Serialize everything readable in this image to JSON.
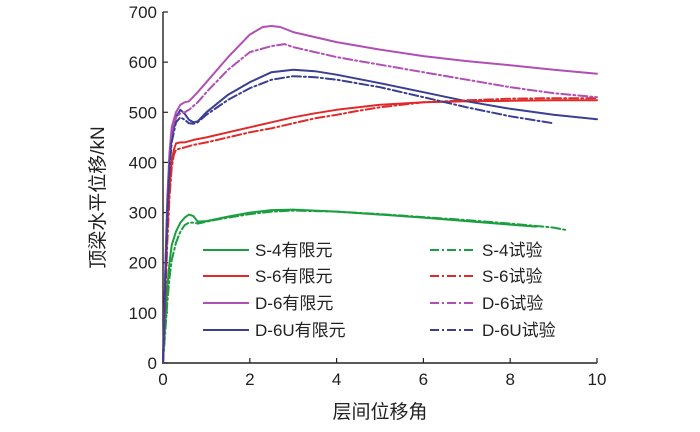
{
  "chart_data": {
    "type": "line",
    "xlabel": "层间位移角",
    "ylabel": "顶梁水平位移/kN",
    "xlim": [
      0,
      10
    ],
    "ylim": [
      0,
      700
    ],
    "xticks": [
      0,
      2,
      4,
      6,
      8,
      10
    ],
    "yticks": [
      0,
      100,
      200,
      300,
      400,
      500,
      600,
      700
    ],
    "grid": false,
    "legend_position": "bottom-center",
    "series": [
      {
        "name": "S-4有限元",
        "color": "#1a9e3f",
        "dash": "solid",
        "legend_col": 0,
        "legend_row": 0,
        "x": [
          0,
          0.05,
          0.1,
          0.15,
          0.2,
          0.3,
          0.4,
          0.5,
          0.6,
          0.7,
          0.8,
          1.0,
          1.5,
          2.0,
          2.5,
          3.0,
          4.0,
          5.0,
          6.0,
          7.0,
          8.0,
          8.6
        ],
        "y": [
          0,
          80,
          150,
          200,
          235,
          262,
          280,
          290,
          296,
          293,
          282,
          283,
          292,
          300,
          305,
          306,
          302,
          296,
          290,
          283,
          276,
          272
        ]
      },
      {
        "name": "S-6有限元",
        "color": "#e02a2a",
        "dash": "solid",
        "legend_col": 0,
        "legend_row": 1,
        "x": [
          0,
          0.05,
          0.1,
          0.15,
          0.2,
          0.25,
          0.3,
          0.4,
          0.5,
          0.7,
          1.0,
          1.5,
          2.0,
          2.5,
          3.0,
          3.5,
          4.0,
          5.0,
          6.0,
          7.0,
          8.0,
          9.0,
          10.0
        ],
        "y": [
          0,
          150,
          270,
          350,
          400,
          425,
          438,
          440,
          440,
          445,
          450,
          460,
          470,
          480,
          490,
          498,
          505,
          515,
          520,
          522,
          523,
          524,
          524
        ]
      },
      {
        "name": "D-6有限元",
        "color": "#b04fb4",
        "dash": "solid",
        "legend_col": 0,
        "legend_row": 2,
        "x": [
          0,
          0.05,
          0.1,
          0.15,
          0.2,
          0.3,
          0.4,
          0.5,
          0.6,
          0.8,
          1.0,
          1.5,
          2.0,
          2.3,
          2.5,
          2.7,
          3.0,
          4.0,
          5.0,
          6.0,
          7.0,
          8.0,
          9.0,
          10.0
        ],
        "y": [
          0,
          180,
          330,
          420,
          470,
          500,
          515,
          520,
          522,
          540,
          560,
          610,
          655,
          670,
          672,
          670,
          660,
          640,
          625,
          612,
          602,
          594,
          585,
          577
        ]
      },
      {
        "name": "D-6U有限元",
        "color": "#3b3f91",
        "dash": "solid",
        "legend_col": 0,
        "legend_row": 3,
        "x": [
          0,
          0.05,
          0.1,
          0.15,
          0.2,
          0.3,
          0.4,
          0.5,
          0.6,
          0.7,
          0.8,
          1.0,
          1.5,
          2.0,
          2.5,
          3.0,
          3.5,
          4.0,
          5.0,
          6.0,
          7.0,
          8.0,
          9.0,
          10.0
        ],
        "y": [
          0,
          170,
          310,
          400,
          450,
          490,
          505,
          497,
          485,
          480,
          482,
          500,
          535,
          560,
          580,
          585,
          582,
          575,
          558,
          540,
          522,
          507,
          495,
          486
        ]
      },
      {
        "name": "S-4试验",
        "color": "#1a9e3f",
        "dash": "dashdot",
        "legend_col": 1,
        "legend_row": 0,
        "x": [
          0,
          0.05,
          0.1,
          0.15,
          0.2,
          0.3,
          0.4,
          0.5,
          0.6,
          0.7,
          0.8,
          1.0,
          1.5,
          2.0,
          2.5,
          3.0,
          4.0,
          5.0,
          6.0,
          7.0,
          8.0,
          9.0,
          9.3
        ],
        "y": [
          0,
          60,
          120,
          170,
          205,
          240,
          262,
          275,
          280,
          280,
          278,
          282,
          290,
          297,
          302,
          304,
          302,
          297,
          291,
          285,
          278,
          270,
          265
        ]
      },
      {
        "name": "S-6试验",
        "color": "#e02a2a",
        "dash": "dashdot",
        "legend_col": 1,
        "legend_row": 1,
        "x": [
          0,
          0.05,
          0.1,
          0.15,
          0.2,
          0.25,
          0.3,
          0.4,
          0.5,
          0.7,
          1.0,
          1.5,
          2.0,
          2.5,
          3.0,
          3.5,
          4.0,
          4.5,
          5.0,
          6.0,
          7.0,
          8.0,
          9.0,
          10.0
        ],
        "y": [
          0,
          120,
          240,
          330,
          390,
          415,
          425,
          428,
          430,
          435,
          440,
          450,
          460,
          468,
          478,
          488,
          495,
          503,
          510,
          520,
          524,
          527,
          528,
          528
        ]
      },
      {
        "name": "D-6试验",
        "color": "#b04fb4",
        "dash": "dashdot",
        "legend_col": 1,
        "legend_row": 2,
        "x": [
          0,
          0.05,
          0.1,
          0.15,
          0.2,
          0.3,
          0.4,
          0.5,
          0.6,
          0.8,
          1.0,
          1.5,
          2.0,
          2.5,
          2.8,
          3.0,
          3.5,
          4.0,
          5.0,
          6.0,
          7.0,
          8.0,
          9.0,
          10.0
        ],
        "y": [
          0,
          160,
          300,
          400,
          455,
          490,
          498,
          500,
          505,
          520,
          540,
          585,
          620,
          632,
          636,
          630,
          620,
          610,
          595,
          580,
          565,
          550,
          538,
          530
        ]
      },
      {
        "name": "D-6U试验",
        "color": "#3b3f91",
        "dash": "dashdot",
        "legend_col": 1,
        "legend_row": 3,
        "x": [
          0,
          0.05,
          0.1,
          0.15,
          0.2,
          0.3,
          0.4,
          0.5,
          0.6,
          0.7,
          0.8,
          1.0,
          1.5,
          2.0,
          2.5,
          3.0,
          3.5,
          4.0,
          5.0,
          6.0,
          7.0,
          8.0,
          9.0
        ],
        "y": [
          0,
          150,
          290,
          385,
          440,
          480,
          490,
          485,
          478,
          477,
          480,
          495,
          525,
          548,
          565,
          572,
          570,
          565,
          550,
          530,
          510,
          492,
          478
        ]
      }
    ]
  }
}
